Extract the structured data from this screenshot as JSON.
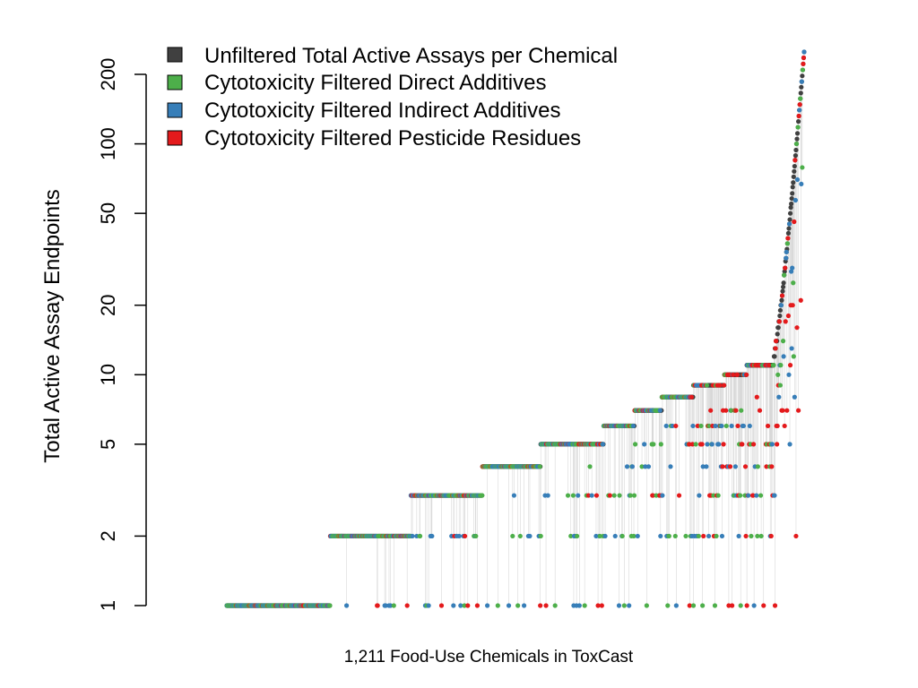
{
  "chart_data": {
    "type": "scatter",
    "title": "",
    "xlabel": "1,211 Food-Use Chemicals in ToxCast",
    "ylabel": "Total Active Assay Endpoints",
    "y_scale": "log",
    "ylim": [
      1,
      250
    ],
    "x_count": 1211,
    "y_ticks": [
      1,
      2,
      5,
      10,
      20,
      50,
      100,
      200
    ],
    "y_tick_labels": [
      "1",
      "2",
      "5",
      "10",
      "20",
      "50",
      "100",
      "200"
    ],
    "grid": false,
    "legend_position": "top-left",
    "colors": {
      "unfiltered": "#404040",
      "direct": "#4daf4a",
      "indirect": "#377eb8",
      "pesticide": "#e41a1c",
      "connector": "#d9d9d9"
    },
    "series": [
      {
        "name": "Unfiltered Total Active Assays per Chemical",
        "key": "unfiltered",
        "description_levels": [
          1,
          2,
          3,
          4,
          5,
          6,
          7,
          8,
          9,
          10,
          11,
          12,
          13,
          14,
          15,
          16,
          18,
          20,
          25,
          30,
          40,
          50,
          60,
          70,
          80,
          100,
          150,
          240
        ]
      },
      {
        "name": "Cytotoxicity Filtered Direct Additives",
        "key": "direct"
      },
      {
        "name": "Cytotoxicity Filtered Indirect Additives",
        "key": "indirect"
      },
      {
        "name": "Cytotoxicity Filtered Pesticide Residues",
        "key": "pesticide"
      }
    ],
    "x_range_of_rank_groups": [
      {
        "count": 1,
        "x_start": 0,
        "x_end": 115
      },
      {
        "count": 2,
        "x_start": 115,
        "x_end": 205
      },
      {
        "count": 3,
        "x_start": 205,
        "x_end": 285
      },
      {
        "count": 4,
        "x_start": 285,
        "x_end": 350
      },
      {
        "count": 5,
        "x_start": 350,
        "x_end": 420
      },
      {
        "count": 6,
        "x_start": 420,
        "x_end": 455
      },
      {
        "count": 7,
        "x_start": 455,
        "x_end": 485
      },
      {
        "count": 8,
        "x_start": 485,
        "x_end": 520
      },
      {
        "count": 9,
        "x_start": 520,
        "x_end": 555
      },
      {
        "count": 10,
        "x_start": 555,
        "x_end": 580
      },
      {
        "count": 11,
        "x_start": 580,
        "x_end": 610
      }
    ],
    "max_unfiltered": 250
  }
}
